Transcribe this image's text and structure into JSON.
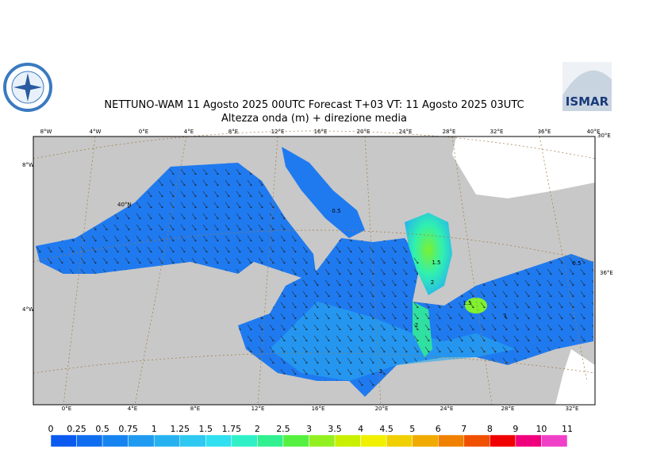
{
  "header": {
    "title": "NETTUNO-WAM  11   Agosto  2025 00UTC Forecast T+03 VT: 11   Agosto  2025 03UTC",
    "subtitle": "Altezza onda (m) + direzione media",
    "logo_text": "ISMAR"
  },
  "map": {
    "top_labels": [
      "8°W",
      "4°W",
      "0°E",
      "4°E",
      "8°E",
      "12°E",
      "16°E",
      "20°E",
      "24°E",
      "28°E",
      "32°E",
      "36°E",
      "40°E"
    ],
    "bottom_labels": [
      "0°E",
      "4°E",
      "8°E",
      "12°E",
      "16°E",
      "20°E",
      "24°E",
      "28°E",
      "32°E"
    ],
    "left_labels": [
      "8°W",
      "40°N",
      "4°W"
    ],
    "right_labels": [
      "30°E",
      "36°E"
    ],
    "contour_labels": [
      "0.5",
      "0.5",
      "1",
      "1.5",
      "2",
      "2",
      "1.5",
      "1"
    ]
  },
  "colorbar": {
    "levels": [
      0,
      0.25,
      0.5,
      0.75,
      1,
      1.25,
      1.5,
      1.75,
      2,
      2.5,
      3,
      3.5,
      4,
      4.5,
      5,
      6,
      7,
      8,
      9,
      10,
      11
    ],
    "colors": [
      "#0a5af0",
      "#0f6ef0",
      "#1684f0",
      "#1e9af0",
      "#26b2f0",
      "#2ec8f0",
      "#30e0f0",
      "#30f0c8",
      "#30f090",
      "#56f040",
      "#92f020",
      "#c8f000",
      "#f0f000",
      "#f0d000",
      "#f0aa00",
      "#f08000",
      "#f05000",
      "#f00000",
      "#f0007c",
      "#f040c8"
    ]
  }
}
